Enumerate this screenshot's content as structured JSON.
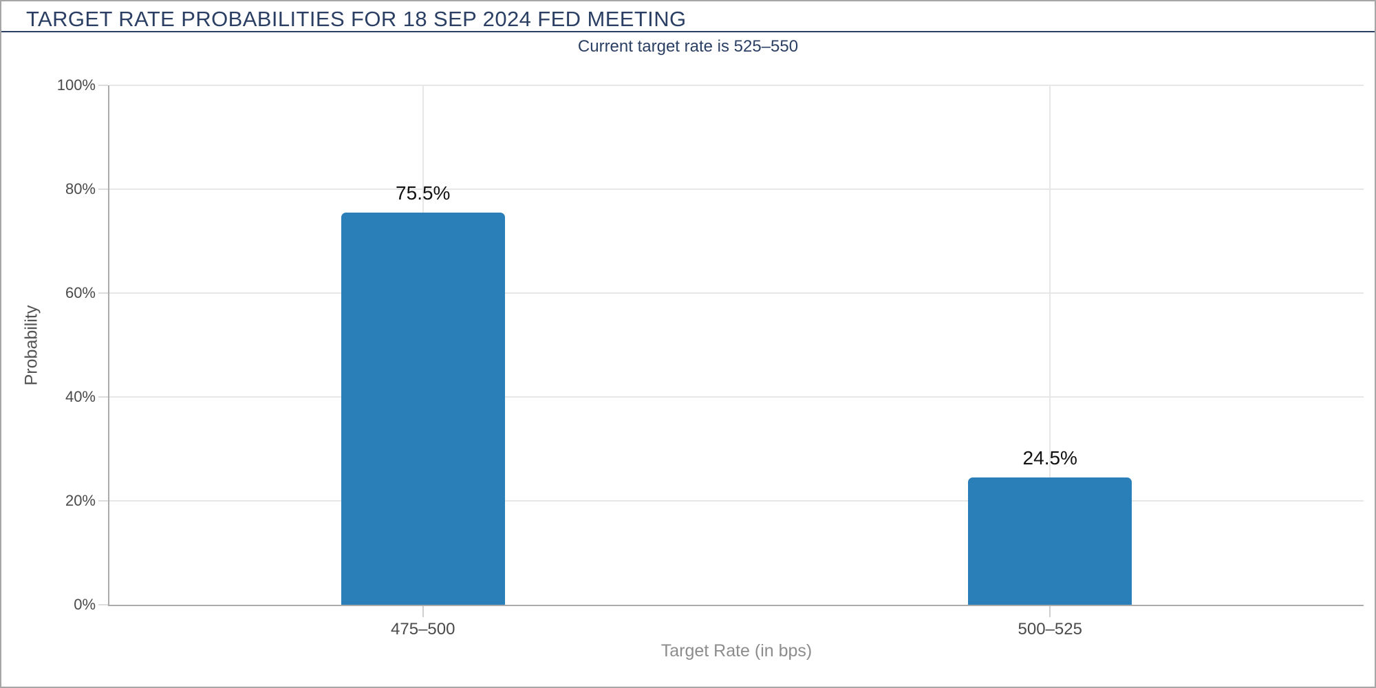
{
  "page": {
    "title": "TARGET RATE PROBABILITIES FOR 18 SEP 2024 FED MEETING",
    "subtitle": "Current target rate is 525–550"
  },
  "colors": {
    "title_navy": "#2a3f63",
    "bar_blue": "#2b7fb8",
    "grid": "#e7e7e7",
    "axis": "#ababab",
    "tick_label": "#4a4a4a",
    "y_axis_title": "#555555",
    "x_axis_title": "#8c8c8c",
    "value_label": "#111111",
    "border": "#a6a6a6"
  },
  "chart_data": {
    "type": "bar",
    "title": "TARGET RATE PROBABILITIES FOR 18 SEP 2024 FED MEETING",
    "subtitle": "Current target rate is 525–550",
    "categories": [
      "475–500",
      "500–525"
    ],
    "values": [
      75.5,
      24.5
    ],
    "value_labels": [
      "75.5%",
      "24.5%"
    ],
    "xlabel": "Target Rate (in bps)",
    "ylabel": "Probability",
    "ylim": [
      0,
      100
    ],
    "yticks": [
      "0%",
      "20%",
      "40%",
      "60%",
      "80%",
      "100%"
    ],
    "grid": true,
    "legend": "none",
    "bar_color": "#2b7fb8"
  }
}
